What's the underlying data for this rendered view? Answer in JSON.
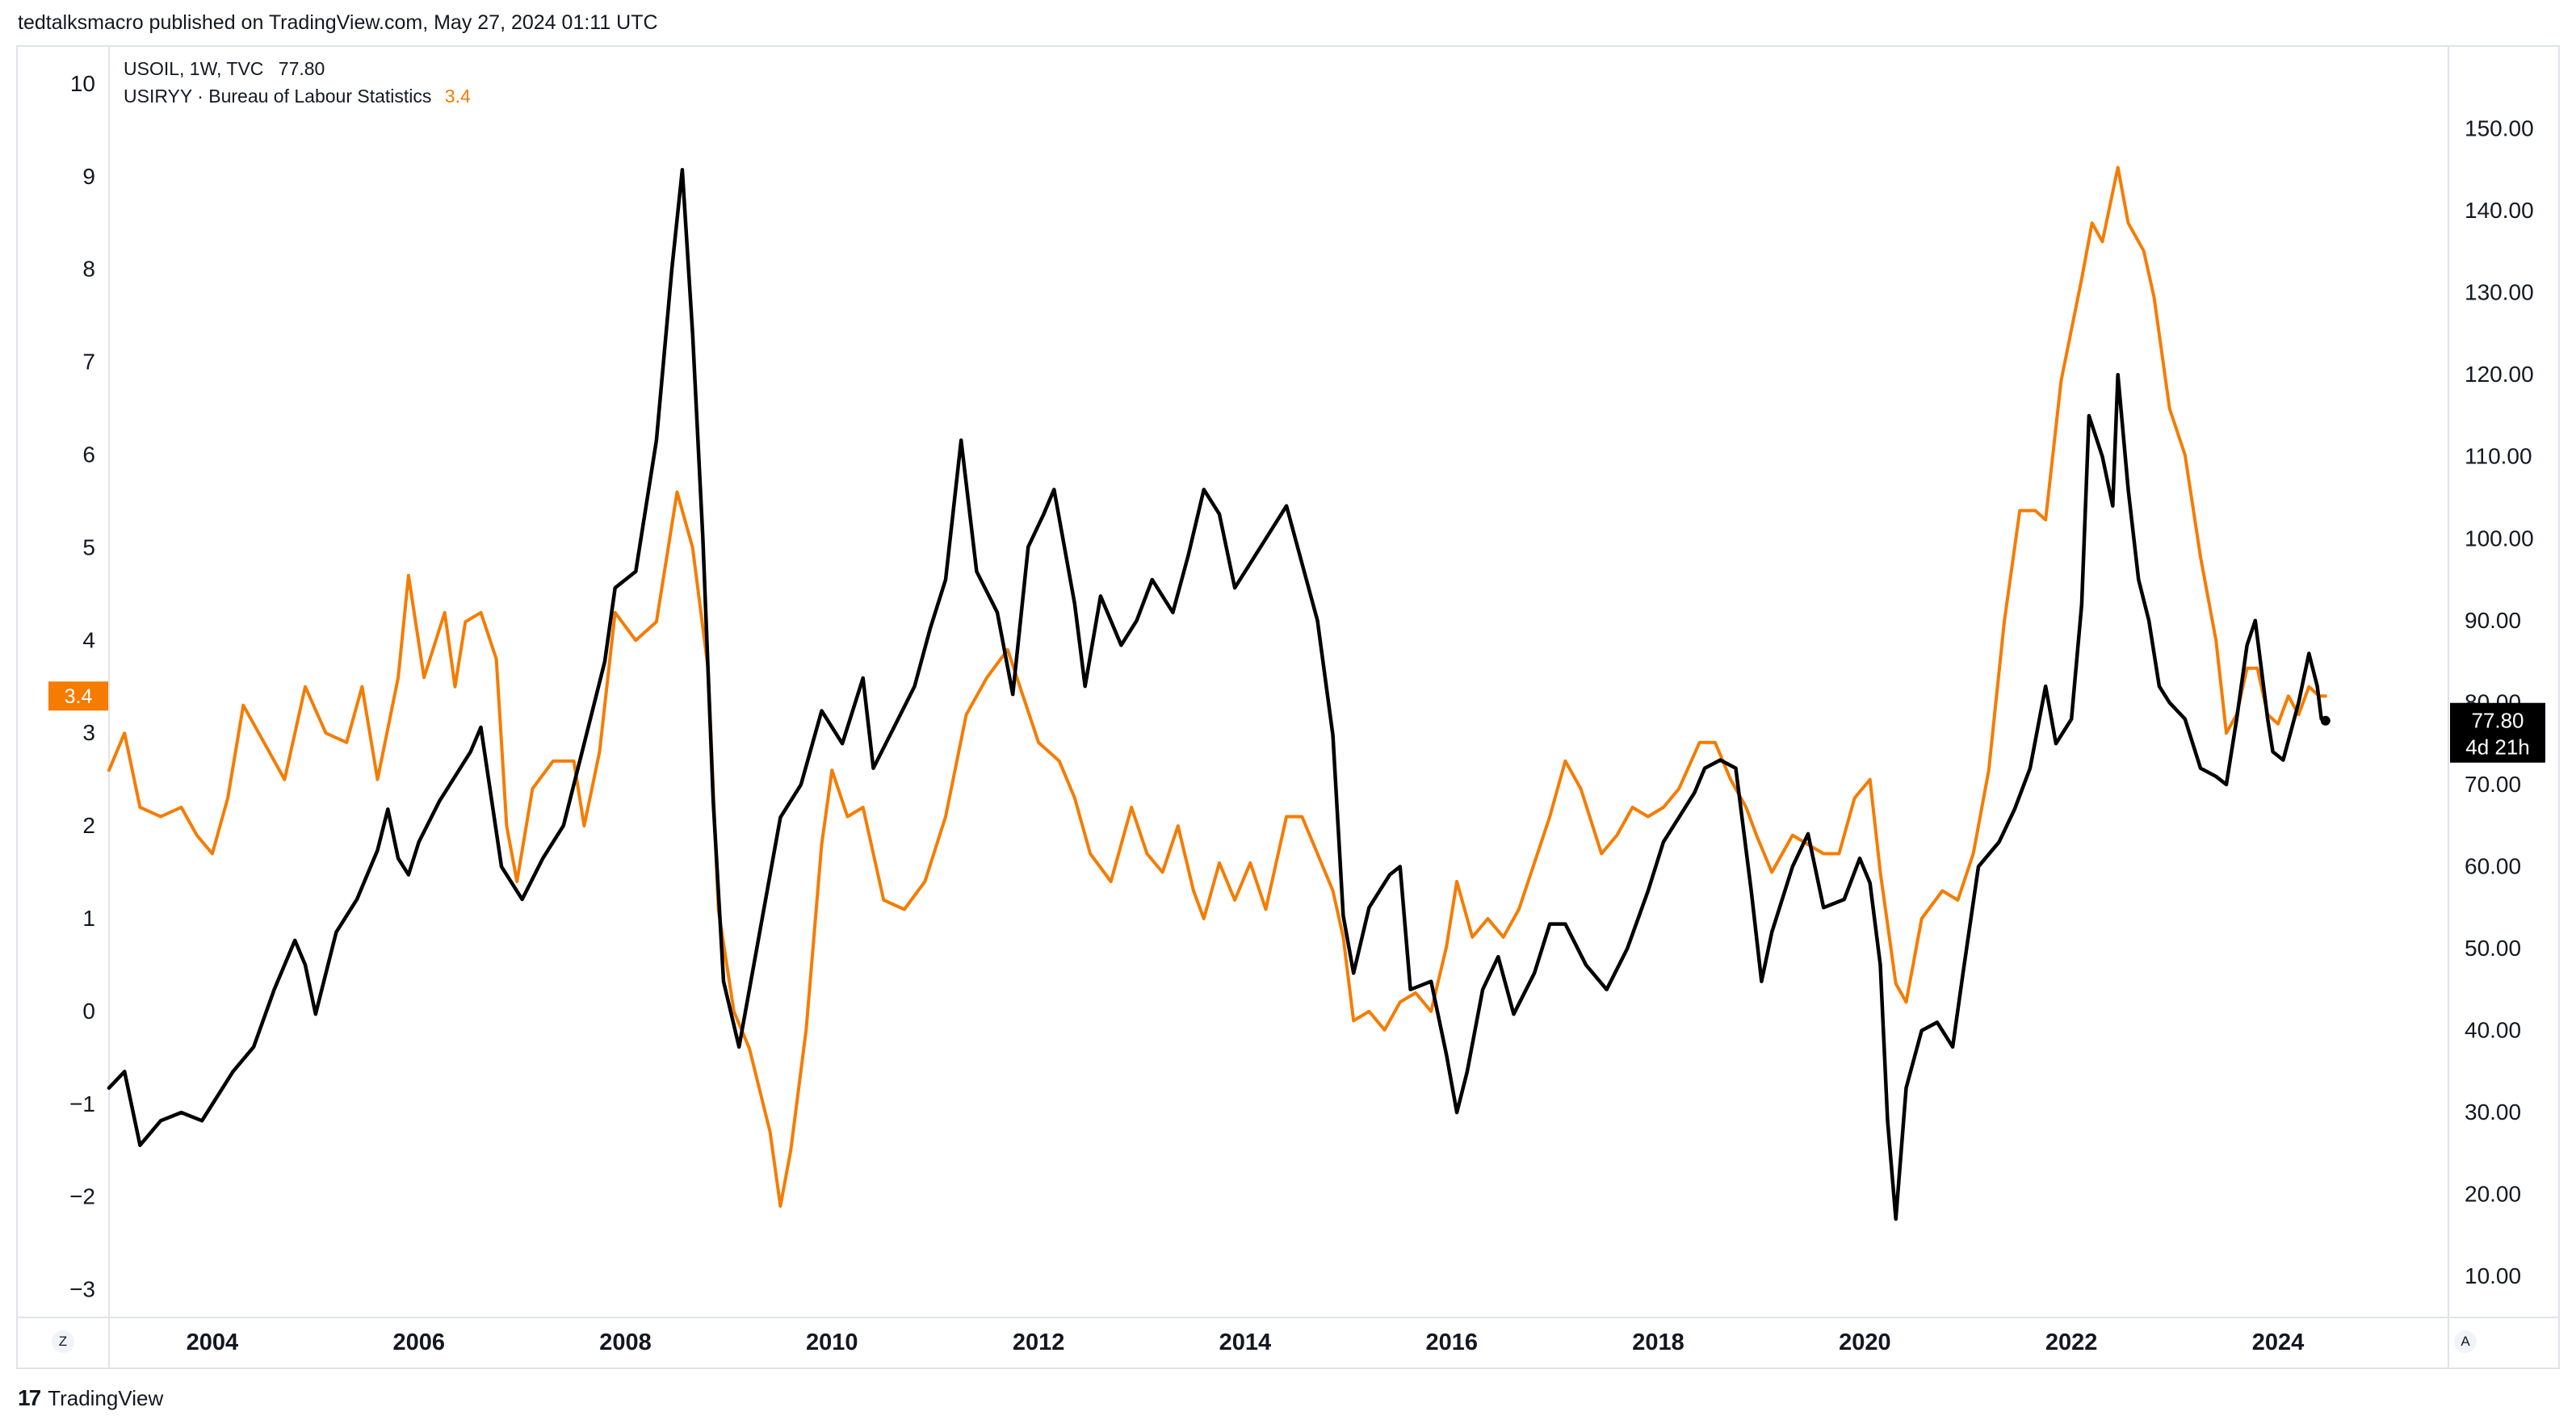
{
  "header": {
    "publisher_line": "tedtalksmacro published on TradingView.com, May 27, 2024 01:11 UTC"
  },
  "legend": {
    "series1_label": "USOIL, 1W, TVC",
    "series1_value": "77.80",
    "series2_label": "USIRYY · Bureau of Labour Statistics",
    "series2_value": "3.4"
  },
  "buttons": {
    "left_corner": "Z",
    "right_corner": "A"
  },
  "footer": {
    "brand": "TradingView",
    "logo_glyph": "17"
  },
  "chart_data": {
    "type": "line",
    "title": "",
    "xlabel": "",
    "x_ticks": [
      "2004",
      "2006",
      "2008",
      "2010",
      "2012",
      "2014",
      "2016",
      "2018",
      "2020",
      "2022",
      "2024"
    ],
    "xlim": [
      2003.0,
      2025.65
    ],
    "left_axis": {
      "ticks": [
        "10",
        "9",
        "8",
        "7",
        "6",
        "5",
        "4",
        "3",
        "2",
        "1",
        "0",
        "−1",
        "−2",
        "−3"
      ],
      "ylim": [
        -3.3,
        10.4
      ]
    },
    "right_axis": {
      "ticks": [
        "150.00",
        "140.00",
        "130.00",
        "120.00",
        "110.00",
        "100.00",
        "90.00",
        "80.00",
        "70.00",
        "60.00",
        "50.00",
        "40.00",
        "30.00",
        "20.00",
        "10.00"
      ],
      "ylim": [
        5,
        160
      ]
    },
    "grid": false,
    "series": [
      {
        "name": "USOIL, 1W, TVC",
        "axis": "right",
        "color": "#000000",
        "last_value": "77.80",
        "last_label_countdown": "4d 21h",
        "points": [
          [
            2003.0,
            33
          ],
          [
            2003.15,
            35
          ],
          [
            2003.3,
            26
          ],
          [
            2003.5,
            29
          ],
          [
            2003.7,
            30
          ],
          [
            2003.9,
            29
          ],
          [
            2004.2,
            35
          ],
          [
            2004.4,
            38
          ],
          [
            2004.6,
            45
          ],
          [
            2004.8,
            51
          ],
          [
            2004.9,
            48
          ],
          [
            2005.0,
            42
          ],
          [
            2005.2,
            52
          ],
          [
            2005.4,
            56
          ],
          [
            2005.6,
            62
          ],
          [
            2005.7,
            67
          ],
          [
            2005.8,
            61
          ],
          [
            2005.9,
            59
          ],
          [
            2006.0,
            63
          ],
          [
            2006.2,
            68
          ],
          [
            2006.3,
            70
          ],
          [
            2006.5,
            74
          ],
          [
            2006.6,
            77
          ],
          [
            2006.8,
            60
          ],
          [
            2007.0,
            56
          ],
          [
            2007.2,
            61
          ],
          [
            2007.4,
            65
          ],
          [
            2007.6,
            75
          ],
          [
            2007.8,
            85
          ],
          [
            2007.9,
            94
          ],
          [
            2008.1,
            96
          ],
          [
            2008.3,
            112
          ],
          [
            2008.45,
            133
          ],
          [
            2008.55,
            145
          ],
          [
            2008.65,
            125
          ],
          [
            2008.75,
            100
          ],
          [
            2008.85,
            68
          ],
          [
            2008.95,
            46
          ],
          [
            2009.1,
            38
          ],
          [
            2009.3,
            52
          ],
          [
            2009.5,
            66
          ],
          [
            2009.7,
            70
          ],
          [
            2009.9,
            79
          ],
          [
            2010.1,
            75
          ],
          [
            2010.3,
            83
          ],
          [
            2010.4,
            72
          ],
          [
            2010.6,
            77
          ],
          [
            2010.8,
            82
          ],
          [
            2010.95,
            89
          ],
          [
            2011.1,
            95
          ],
          [
            2011.25,
            112
          ],
          [
            2011.4,
            96
          ],
          [
            2011.6,
            91
          ],
          [
            2011.75,
            81
          ],
          [
            2011.9,
            99
          ],
          [
            2012.05,
            103
          ],
          [
            2012.15,
            106
          ],
          [
            2012.35,
            92
          ],
          [
            2012.45,
            82
          ],
          [
            2012.6,
            93
          ],
          [
            2012.8,
            87
          ],
          [
            2012.95,
            90
          ],
          [
            2013.1,
            95
          ],
          [
            2013.3,
            91
          ],
          [
            2013.45,
            98
          ],
          [
            2013.6,
            106
          ],
          [
            2013.75,
            103
          ],
          [
            2013.9,
            94
          ],
          [
            2014.05,
            97
          ],
          [
            2014.2,
            100
          ],
          [
            2014.4,
            104
          ],
          [
            2014.55,
            97
          ],
          [
            2014.7,
            90
          ],
          [
            2014.85,
            76
          ],
          [
            2014.95,
            54
          ],
          [
            2015.05,
            47
          ],
          [
            2015.2,
            55
          ],
          [
            2015.4,
            59
          ],
          [
            2015.5,
            60
          ],
          [
            2015.6,
            45
          ],
          [
            2015.8,
            46
          ],
          [
            2015.95,
            37
          ],
          [
            2016.05,
            30
          ],
          [
            2016.15,
            35
          ],
          [
            2016.3,
            45
          ],
          [
            2016.45,
            49
          ],
          [
            2016.6,
            42
          ],
          [
            2016.8,
            47
          ],
          [
            2016.95,
            53
          ],
          [
            2017.1,
            53
          ],
          [
            2017.3,
            48
          ],
          [
            2017.5,
            45
          ],
          [
            2017.7,
            50
          ],
          [
            2017.9,
            57
          ],
          [
            2018.05,
            63
          ],
          [
            2018.2,
            66
          ],
          [
            2018.35,
            69
          ],
          [
            2018.45,
            72
          ],
          [
            2018.6,
            73
          ],
          [
            2018.75,
            72
          ],
          [
            2018.9,
            57
          ],
          [
            2019.0,
            46
          ],
          [
            2019.1,
            52
          ],
          [
            2019.3,
            60
          ],
          [
            2019.45,
            64
          ],
          [
            2019.6,
            55
          ],
          [
            2019.8,
            56
          ],
          [
            2019.95,
            61
          ],
          [
            2020.05,
            58
          ],
          [
            2020.15,
            48
          ],
          [
            2020.22,
            29
          ],
          [
            2020.3,
            17
          ],
          [
            2020.4,
            33
          ],
          [
            2020.55,
            40
          ],
          [
            2020.7,
            41
          ],
          [
            2020.85,
            38
          ],
          [
            2020.95,
            47
          ],
          [
            2021.1,
            60
          ],
          [
            2021.3,
            63
          ],
          [
            2021.45,
            67
          ],
          [
            2021.6,
            72
          ],
          [
            2021.75,
            82
          ],
          [
            2021.85,
            75
          ],
          [
            2022.0,
            78
          ],
          [
            2022.1,
            92
          ],
          [
            2022.17,
            115
          ],
          [
            2022.3,
            110
          ],
          [
            2022.4,
            104
          ],
          [
            2022.45,
            120
          ],
          [
            2022.55,
            106
          ],
          [
            2022.65,
            95
          ],
          [
            2022.75,
            90
          ],
          [
            2022.85,
            82
          ],
          [
            2022.95,
            80
          ],
          [
            2023.1,
            78
          ],
          [
            2023.25,
            72
          ],
          [
            2023.4,
            71
          ],
          [
            2023.5,
            70
          ],
          [
            2023.6,
            78
          ],
          [
            2023.7,
            87
          ],
          [
            2023.78,
            90
          ],
          [
            2023.9,
            78
          ],
          [
            2023.95,
            74
          ],
          [
            2024.05,
            73
          ],
          [
            2024.2,
            80
          ],
          [
            2024.3,
            86
          ],
          [
            2024.38,
            82
          ],
          [
            2024.42,
            78
          ],
          [
            2024.46,
            77.8
          ]
        ]
      },
      {
        "name": "USIRYY · Bureau of Labour Statistics",
        "axis": "left",
        "color": "#f57c00",
        "last_value": "3.4",
        "points": [
          [
            2003.0,
            2.6
          ],
          [
            2003.15,
            3.0
          ],
          [
            2003.3,
            2.2
          ],
          [
            2003.5,
            2.1
          ],
          [
            2003.7,
            2.2
          ],
          [
            2003.85,
            1.9
          ],
          [
            2004.0,
            1.7
          ],
          [
            2004.15,
            2.3
          ],
          [
            2004.3,
            3.3
          ],
          [
            2004.5,
            2.9
          ],
          [
            2004.7,
            2.5
          ],
          [
            2004.9,
            3.5
          ],
          [
            2005.1,
            3.0
          ],
          [
            2005.3,
            2.9
          ],
          [
            2005.45,
            3.5
          ],
          [
            2005.6,
            2.5
          ],
          [
            2005.8,
            3.6
          ],
          [
            2005.9,
            4.7
          ],
          [
            2006.05,
            3.6
          ],
          [
            2006.25,
            4.3
          ],
          [
            2006.35,
            3.5
          ],
          [
            2006.45,
            4.2
          ],
          [
            2006.6,
            4.3
          ],
          [
            2006.75,
            3.8
          ],
          [
            2006.85,
            2.0
          ],
          [
            2006.95,
            1.4
          ],
          [
            2007.1,
            2.4
          ],
          [
            2007.3,
            2.7
          ],
          [
            2007.5,
            2.7
          ],
          [
            2007.6,
            2.0
          ],
          [
            2007.75,
            2.8
          ],
          [
            2007.9,
            4.3
          ],
          [
            2008.1,
            4.0
          ],
          [
            2008.3,
            4.2
          ],
          [
            2008.5,
            5.6
          ],
          [
            2008.65,
            5.0
          ],
          [
            2008.8,
            3.7
          ],
          [
            2008.9,
            1.1
          ],
          [
            2009.05,
            0.0
          ],
          [
            2009.2,
            -0.4
          ],
          [
            2009.4,
            -1.3
          ],
          [
            2009.5,
            -2.1
          ],
          [
            2009.6,
            -1.5
          ],
          [
            2009.75,
            -0.2
          ],
          [
            2009.9,
            1.8
          ],
          [
            2010.0,
            2.6
          ],
          [
            2010.15,
            2.1
          ],
          [
            2010.3,
            2.2
          ],
          [
            2010.5,
            1.2
          ],
          [
            2010.7,
            1.1
          ],
          [
            2010.9,
            1.4
          ],
          [
            2011.1,
            2.1
          ],
          [
            2011.3,
            3.2
          ],
          [
            2011.5,
            3.6
          ],
          [
            2011.7,
            3.9
          ],
          [
            2011.85,
            3.4
          ],
          [
            2012.0,
            2.9
          ],
          [
            2012.2,
            2.7
          ],
          [
            2012.35,
            2.3
          ],
          [
            2012.5,
            1.7
          ],
          [
            2012.7,
            1.4
          ],
          [
            2012.9,
            2.2
          ],
          [
            2013.05,
            1.7
          ],
          [
            2013.2,
            1.5
          ],
          [
            2013.35,
            2.0
          ],
          [
            2013.5,
            1.3
          ],
          [
            2013.6,
            1.0
          ],
          [
            2013.75,
            1.6
          ],
          [
            2013.9,
            1.2
          ],
          [
            2014.05,
            1.6
          ],
          [
            2014.2,
            1.1
          ],
          [
            2014.4,
            2.1
          ],
          [
            2014.55,
            2.1
          ],
          [
            2014.7,
            1.7
          ],
          [
            2014.85,
            1.3
          ],
          [
            2014.95,
            0.8
          ],
          [
            2015.05,
            -0.1
          ],
          [
            2015.2,
            0.0
          ],
          [
            2015.35,
            -0.2
          ],
          [
            2015.5,
            0.1
          ],
          [
            2015.65,
            0.2
          ],
          [
            2015.8,
            0.0
          ],
          [
            2015.95,
            0.7
          ],
          [
            2016.05,
            1.4
          ],
          [
            2016.2,
            0.8
          ],
          [
            2016.35,
            1.0
          ],
          [
            2016.5,
            0.8
          ],
          [
            2016.65,
            1.1
          ],
          [
            2016.8,
            1.6
          ],
          [
            2016.95,
            2.1
          ],
          [
            2017.1,
            2.7
          ],
          [
            2017.25,
            2.4
          ],
          [
            2017.45,
            1.7
          ],
          [
            2017.6,
            1.9
          ],
          [
            2017.75,
            2.2
          ],
          [
            2017.9,
            2.1
          ],
          [
            2018.05,
            2.2
          ],
          [
            2018.2,
            2.4
          ],
          [
            2018.4,
            2.9
          ],
          [
            2018.55,
            2.9
          ],
          [
            2018.7,
            2.5
          ],
          [
            2018.85,
            2.2
          ],
          [
            2018.95,
            1.9
          ],
          [
            2019.1,
            1.5
          ],
          [
            2019.3,
            1.9
          ],
          [
            2019.45,
            1.8
          ],
          [
            2019.6,
            1.7
          ],
          [
            2019.75,
            1.7
          ],
          [
            2019.9,
            2.3
          ],
          [
            2020.05,
            2.5
          ],
          [
            2020.15,
            1.5
          ],
          [
            2020.3,
            0.3
          ],
          [
            2020.4,
            0.1
          ],
          [
            2020.55,
            1.0
          ],
          [
            2020.75,
            1.3
          ],
          [
            2020.9,
            1.2
          ],
          [
            2021.05,
            1.7
          ],
          [
            2021.2,
            2.6
          ],
          [
            2021.35,
            4.2
          ],
          [
            2021.5,
            5.4
          ],
          [
            2021.65,
            5.4
          ],
          [
            2021.75,
            5.3
          ],
          [
            2021.9,
            6.8
          ],
          [
            2022.1,
            7.9
          ],
          [
            2022.2,
            8.5
          ],
          [
            2022.3,
            8.3
          ],
          [
            2022.45,
            9.1
          ],
          [
            2022.55,
            8.5
          ],
          [
            2022.7,
            8.2
          ],
          [
            2022.8,
            7.7
          ],
          [
            2022.95,
            6.5
          ],
          [
            2023.1,
            6.0
          ],
          [
            2023.25,
            4.9
          ],
          [
            2023.4,
            4.0
          ],
          [
            2023.5,
            3.0
          ],
          [
            2023.6,
            3.2
          ],
          [
            2023.7,
            3.7
          ],
          [
            2023.8,
            3.7
          ],
          [
            2023.9,
            3.2
          ],
          [
            2024.0,
            3.1
          ],
          [
            2024.1,
            3.4
          ],
          [
            2024.2,
            3.2
          ],
          [
            2024.3,
            3.5
          ],
          [
            2024.4,
            3.4
          ],
          [
            2024.46,
            3.4
          ]
        ]
      }
    ]
  }
}
